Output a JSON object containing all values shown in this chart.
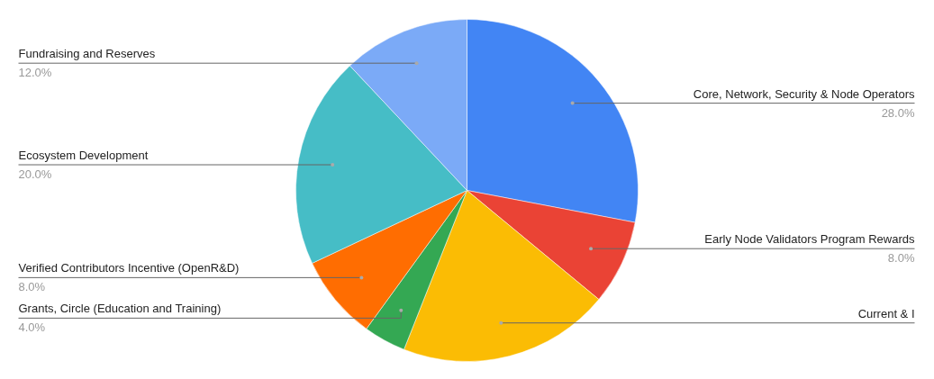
{
  "chart_data": {
    "type": "pie",
    "categories": [
      "Core, Network, Security & Node Operators",
      "Early Node Validators Program Rewards",
      "Current & I",
      "Grants, Circle (Education and Training)",
      "Verified Contributors Incentive (OpenR&D)",
      "Ecosystem Development",
      "Fundraising and Reserves"
    ],
    "values": [
      28,
      8,
      20,
      4,
      8,
      20,
      12
    ],
    "colors": [
      "#4285f4",
      "#ea4335",
      "#fbbc04",
      "#34a853",
      "#ff6d01",
      "#46bdc6",
      "#7baaf7"
    ],
    "value_labels": [
      "28.0%",
      "8.0%",
      null,
      "4.0%",
      "8.0%",
      "20.0%",
      "12.0%"
    ]
  }
}
